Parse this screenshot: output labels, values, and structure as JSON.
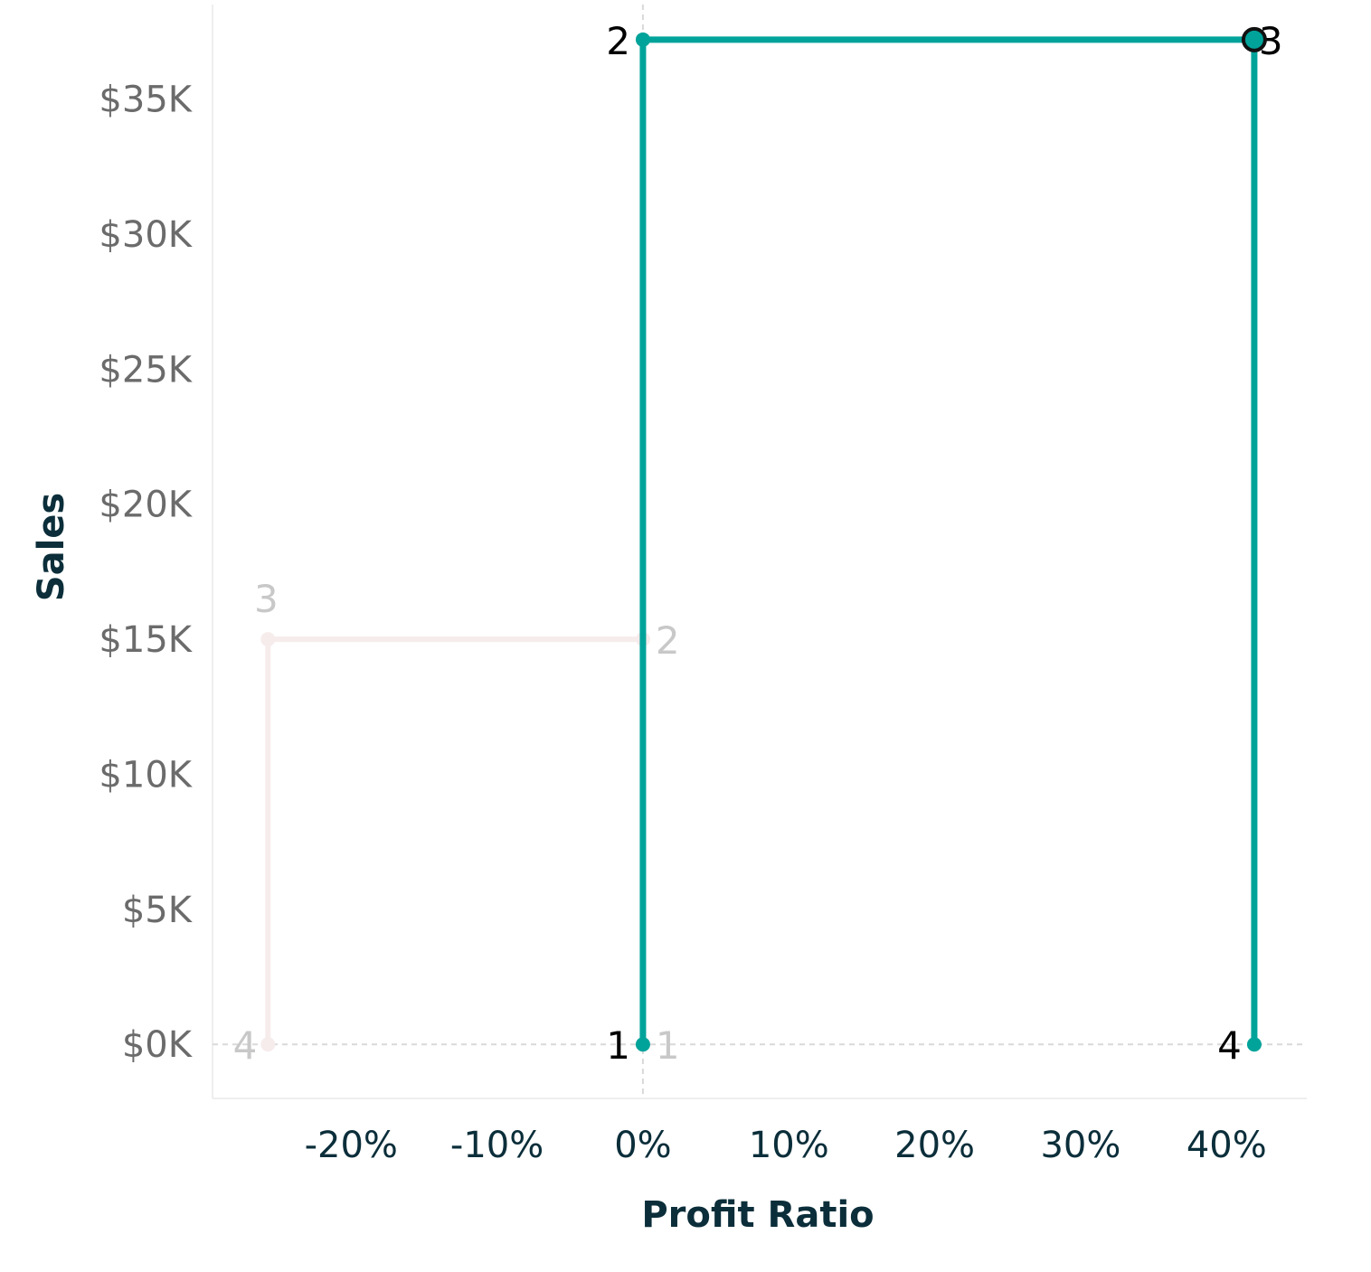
{
  "chart_data": {
    "type": "line",
    "xlabel": "Profit Ratio",
    "ylabel": "Sales",
    "xlim": [
      -0.295,
      0.455
    ],
    "ylim": [
      -2000,
      38500
    ],
    "grid": false,
    "x_ticks": [
      {
        "value": -0.2,
        "label": "-20%"
      },
      {
        "value": -0.1,
        "label": "-10%"
      },
      {
        "value": 0.0,
        "label": "0%"
      },
      {
        "value": 0.1,
        "label": "10%"
      },
      {
        "value": 0.2,
        "label": "20%"
      },
      {
        "value": 0.3,
        "label": "30%"
      },
      {
        "value": 0.4,
        "label": "40%"
      }
    ],
    "y_ticks": [
      {
        "value": 0,
        "label": "$0K"
      },
      {
        "value": 5000,
        "label": "$5K"
      },
      {
        "value": 10000,
        "label": "$10K"
      },
      {
        "value": 15000,
        "label": "$15K"
      },
      {
        "value": 20000,
        "label": "$20K"
      },
      {
        "value": 25000,
        "label": "$25K"
      },
      {
        "value": 30000,
        "label": "$30K"
      },
      {
        "value": 35000,
        "label": "$35K"
      }
    ],
    "reference_lines": {
      "x": 0,
      "y": 0
    },
    "series": [
      {
        "color": "#f7ecec",
        "label_color": "#c8c8c8",
        "highlighted": false,
        "points": [
          {
            "label": "1",
            "x": 0.0,
            "y": 0
          },
          {
            "label": "2",
            "x": 0.0,
            "y": 15000
          },
          {
            "label": "3",
            "x": -0.257,
            "y": 15000
          },
          {
            "label": "4",
            "x": -0.257,
            "y": 0
          }
        ]
      },
      {
        "color": "#00a39a",
        "label_color": "#000000",
        "highlighted": true,
        "points": [
          {
            "label": "1",
            "x": 0.0,
            "y": 0
          },
          {
            "label": "2",
            "x": 0.0,
            "y": 37200
          },
          {
            "label": "3",
            "x": 0.419,
            "y": 37200
          },
          {
            "label": "4",
            "x": 0.419,
            "y": 0
          }
        ]
      }
    ]
  }
}
